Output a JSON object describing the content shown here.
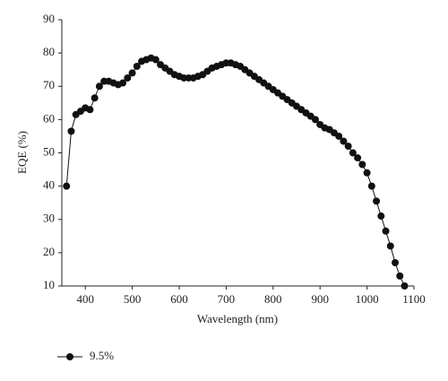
{
  "chart_data": {
    "type": "line",
    "x_label": "Wavelength (nm)",
    "y_label": "EQE (%)",
    "x": [
      360,
      370,
      380,
      390,
      400,
      410,
      420,
      430,
      440,
      450,
      460,
      470,
      480,
      490,
      500,
      510,
      520,
      530,
      540,
      550,
      560,
      570,
      580,
      590,
      600,
      610,
      620,
      630,
      640,
      650,
      660,
      670,
      680,
      690,
      700,
      710,
      720,
      730,
      740,
      750,
      760,
      770,
      780,
      790,
      800,
      810,
      820,
      830,
      840,
      850,
      860,
      870,
      880,
      890,
      900,
      910,
      920,
      930,
      940,
      950,
      960,
      970,
      980,
      990,
      1000,
      1010,
      1020,
      1030,
      1040,
      1050,
      1060,
      1070,
      1080
    ],
    "series": [
      {
        "name": "9.5%",
        "color": "#111111",
        "values": [
          40,
          56.5,
          61.5,
          62.5,
          63.5,
          63,
          66.5,
          70,
          71.5,
          71.5,
          71,
          70.5,
          71,
          72.5,
          74,
          76,
          77.5,
          78,
          78.5,
          78,
          76.5,
          75.5,
          74.5,
          73.5,
          73,
          72.5,
          72.5,
          72.5,
          73,
          73.5,
          74.5,
          75.5,
          76,
          76.5,
          77,
          77,
          76.5,
          76,
          75,
          74,
          73,
          72,
          71,
          70,
          69,
          68,
          67,
          66,
          65,
          64,
          63,
          62,
          61,
          60,
          58.5,
          57.5,
          57,
          56,
          55,
          53.5,
          52,
          50,
          48.5,
          46.5,
          44,
          40,
          35.5,
          31,
          26.5,
          22,
          17,
          13,
          10
        ]
      }
    ],
    "xlim": [
      350,
      1100
    ],
    "xticks": [
      400,
      500,
      600,
      700,
      800,
      900,
      1000,
      1100
    ],
    "ylim": [
      10,
      90
    ],
    "yticks": [
      10,
      20,
      30,
      40,
      50,
      60,
      70,
      80,
      90
    ],
    "legend": "bottom-left"
  }
}
